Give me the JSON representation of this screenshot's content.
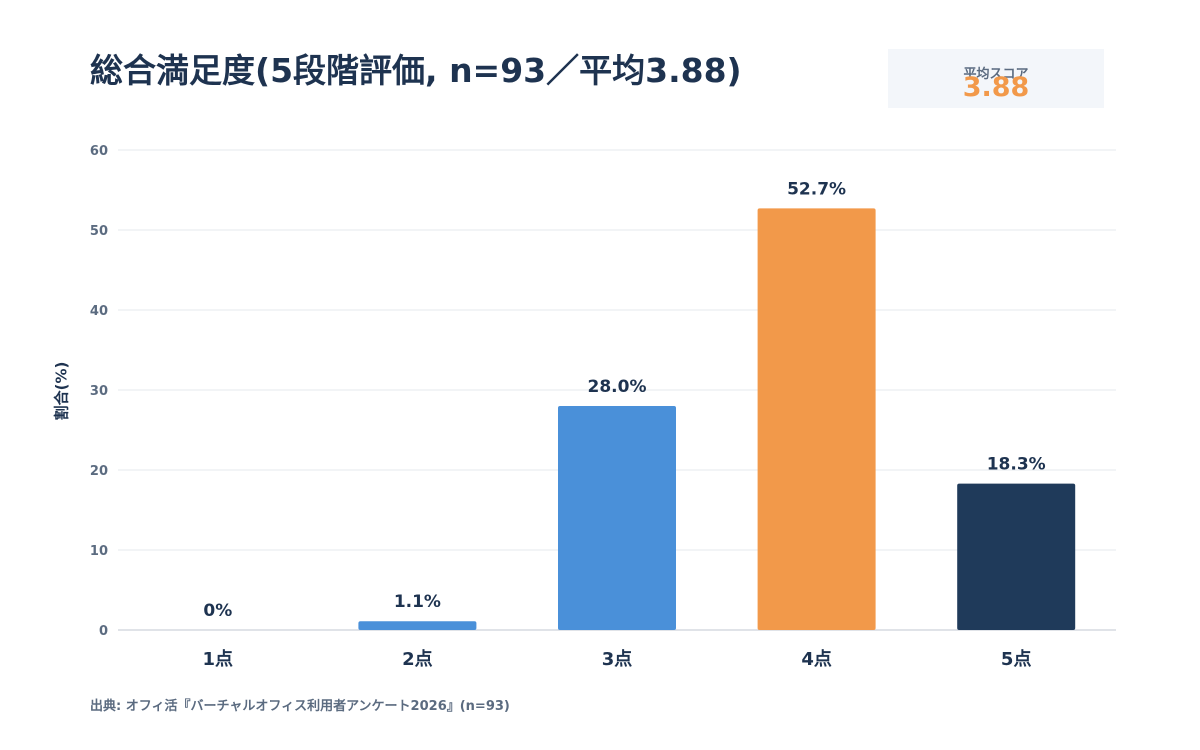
{
  "title": "総合満足度(5段階評価, n=93／平均3.88)",
  "score_box": {
    "label": "平均スコア",
    "value": "3.88"
  },
  "source": "出典: オフィ活『バーチャルオフィス利用者アンケート2026』(n=93)",
  "colors": {
    "title": "#1e3350",
    "axis_text": "#5b6b80",
    "grid": "#e6e9ee",
    "accent": "#f2994a"
  },
  "chart_data": {
    "type": "bar",
    "categories": [
      "1点",
      "2点",
      "3点",
      "4点",
      "5点"
    ],
    "values": [
      0,
      1.1,
      28.0,
      52.7,
      18.3
    ],
    "data_labels": [
      "0%",
      "1.1%",
      "28.0%",
      "52.7%",
      "18.3%"
    ],
    "bar_colors": [
      "#4a90d9",
      "#4a90d9",
      "#4a90d9",
      "#f2994a",
      "#1f3a5a"
    ],
    "ylabel": "割合(%)",
    "xlabel": "",
    "ylim": [
      0,
      60
    ],
    "yticks": [
      0,
      10,
      20,
      30,
      40,
      50,
      60
    ],
    "grid": true
  }
}
